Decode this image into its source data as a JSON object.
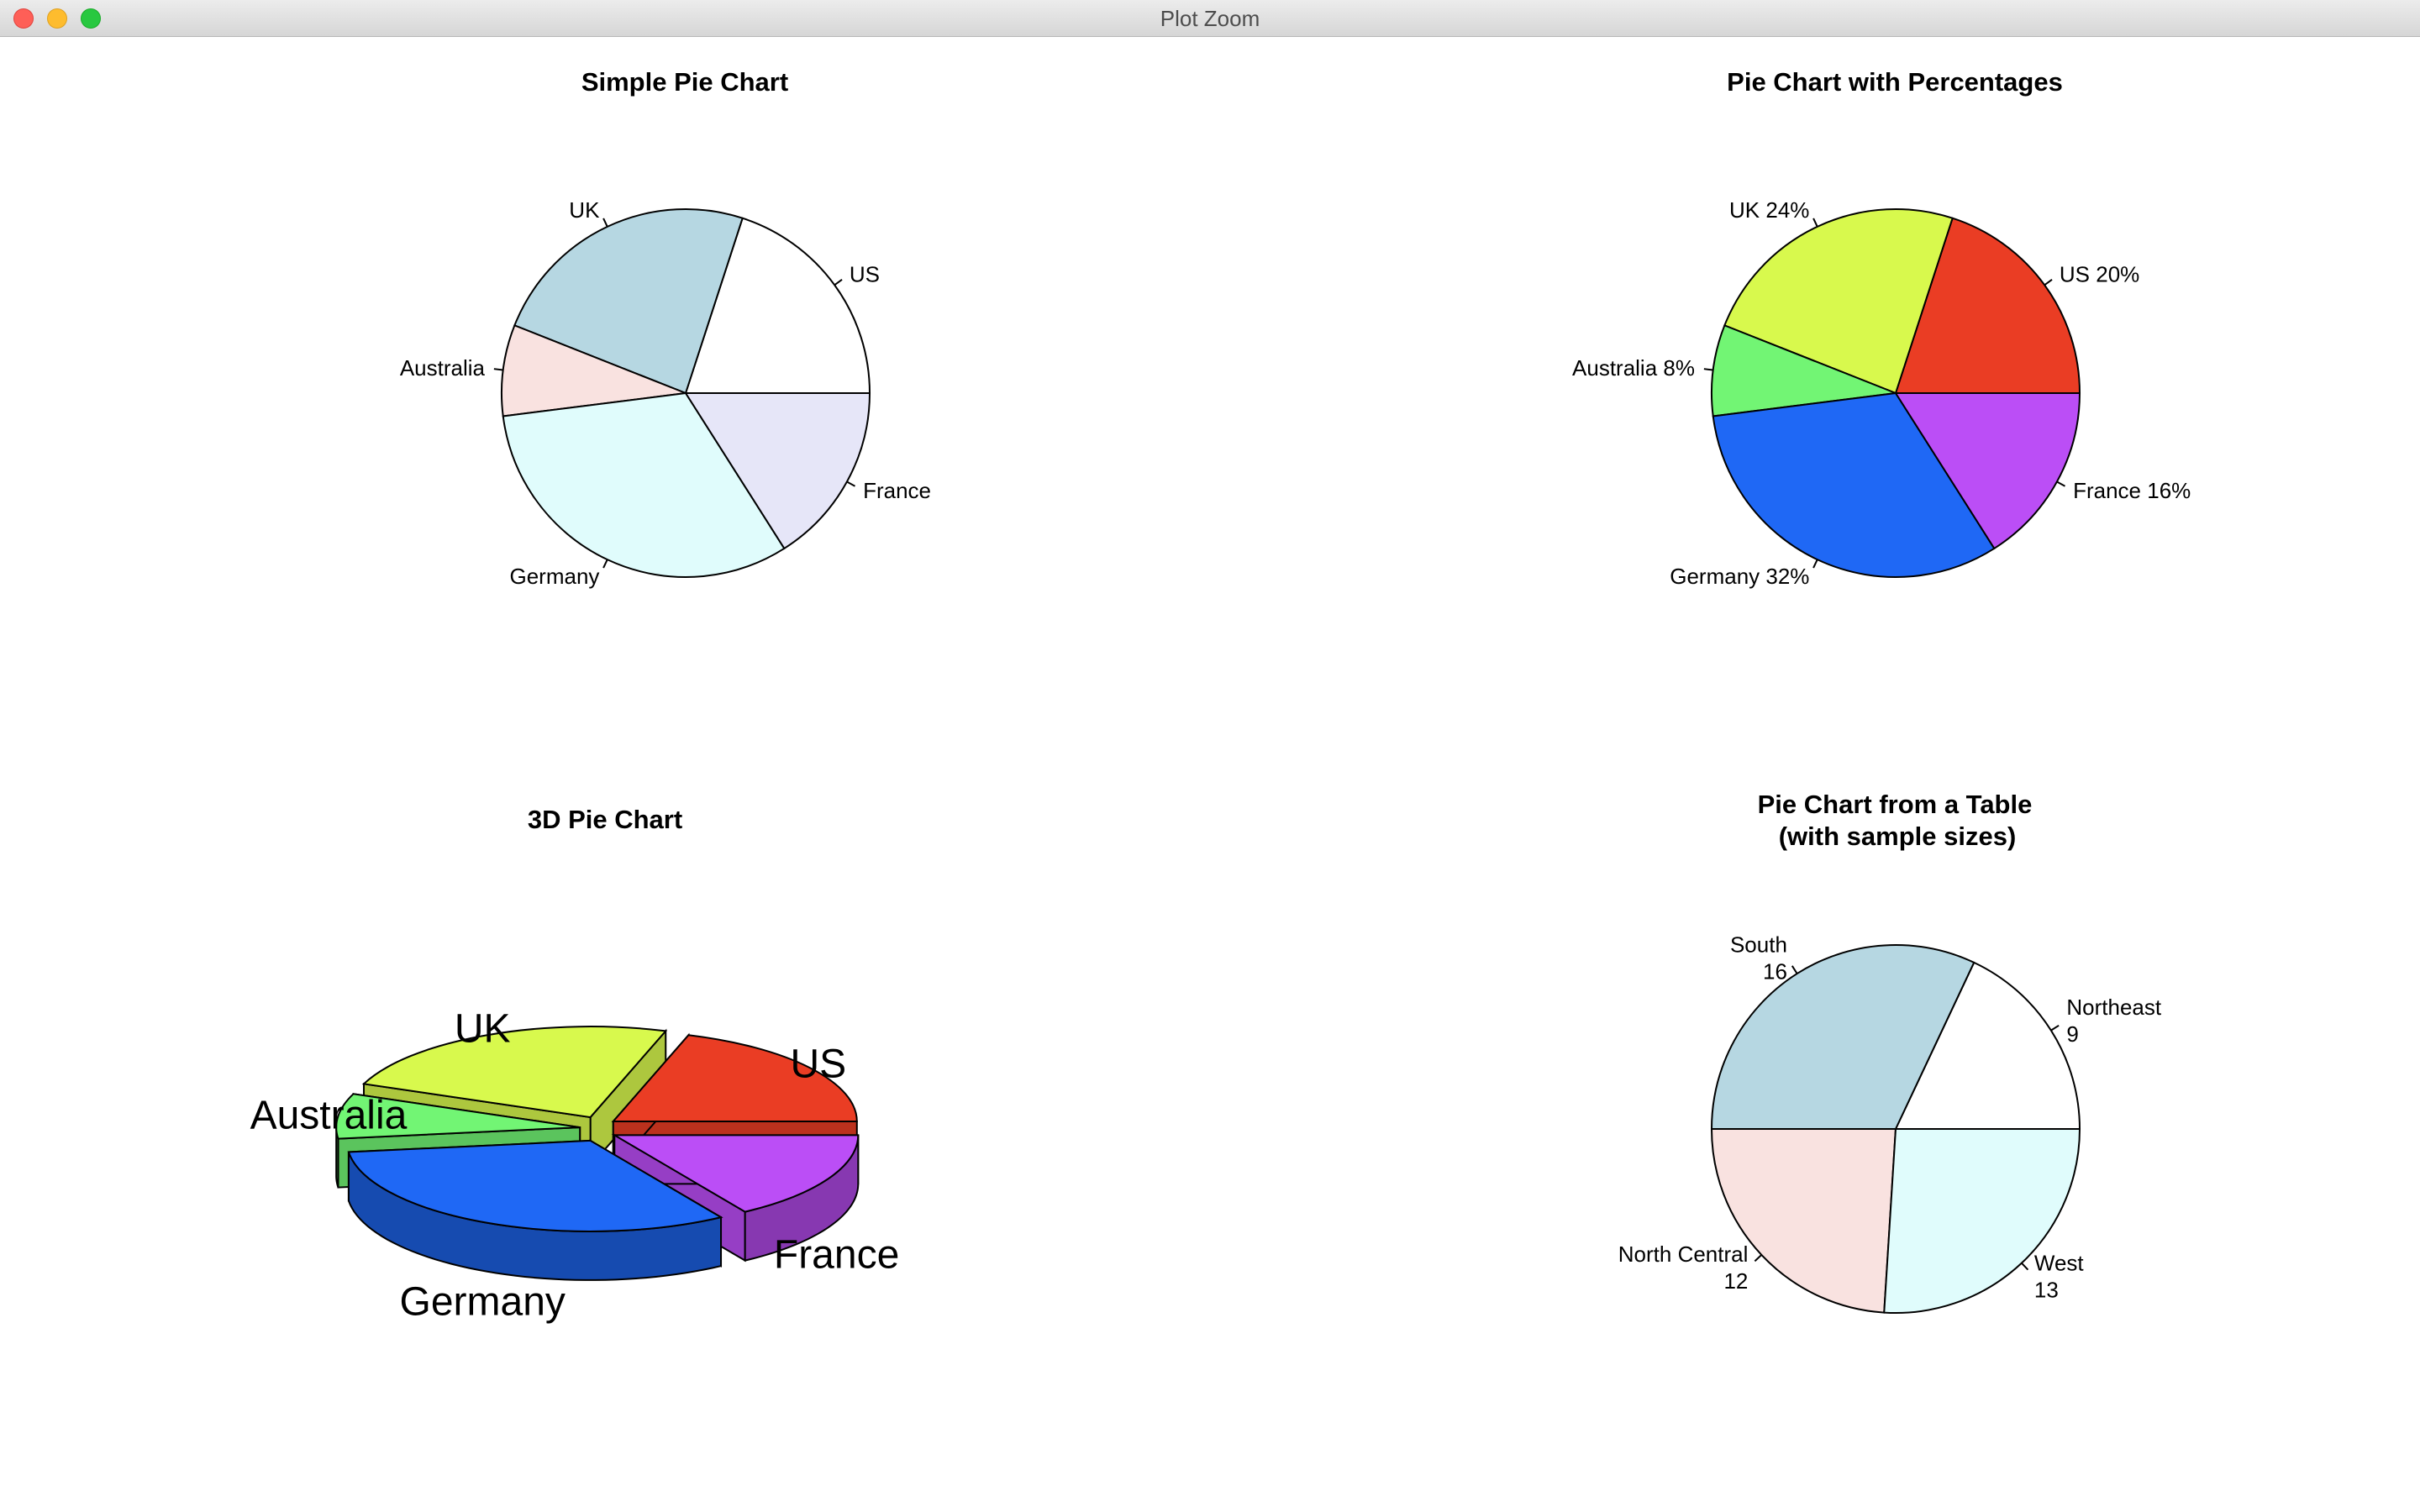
{
  "window": {
    "title": "Plot Zoom"
  },
  "chart_data": [
    {
      "type": "pie",
      "title": "Simple Pie Chart",
      "categories": [
        "US",
        "UK",
        "Australia",
        "Germany",
        "France"
      ],
      "values": [
        10,
        12,
        4,
        16,
        8
      ],
      "labels": [
        "US",
        "UK",
        "Australia",
        "Germany",
        "France"
      ],
      "colors": [
        "#ffffff",
        "#b6d7e2",
        "#f9e2e0",
        "#e0fcfc",
        "#e6e6f8"
      ]
    },
    {
      "type": "pie",
      "title": "Pie Chart with Percentages",
      "categories": [
        "US",
        "UK",
        "Australia",
        "Germany",
        "France"
      ],
      "values": [
        10,
        12,
        4,
        16,
        8
      ],
      "labels": [
        "US 20%",
        "UK 24%",
        "Australia 8%",
        "Germany 32%",
        "France 16%"
      ],
      "colors": [
        "#ea3d24",
        "#d8f94d",
        "#72f574",
        "#1f68f5",
        "#bb4ef6"
      ]
    },
    {
      "type": "pie",
      "title": "3D Pie Chart",
      "categories": [
        "US",
        "UK",
        "Australia",
        "Germany",
        "France"
      ],
      "values": [
        10,
        12,
        4,
        16,
        8
      ],
      "labels": [
        "US",
        "UK",
        "Australia",
        "Germany",
        "France"
      ],
      "colors": [
        "#ea3d24",
        "#d8f94d",
        "#72f574",
        "#1f68f5",
        "#bb4ef6"
      ],
      "exploded": true
    },
    {
      "type": "pie",
      "title": "Pie Chart from a Table",
      "subtitle": "(with sample sizes)",
      "categories": [
        "Northeast",
        "South",
        "North Central",
        "West"
      ],
      "values": [
        9,
        16,
        12,
        13
      ],
      "labels": [
        [
          "Northeast",
          "9"
        ],
        [
          "South",
          "16"
        ],
        [
          "North Central",
          "12"
        ],
        [
          "West",
          "13"
        ]
      ],
      "colors": [
        "#ffffff",
        "#b6d7e2",
        "#f9e2e0",
        "#e0fcfc"
      ]
    }
  ]
}
